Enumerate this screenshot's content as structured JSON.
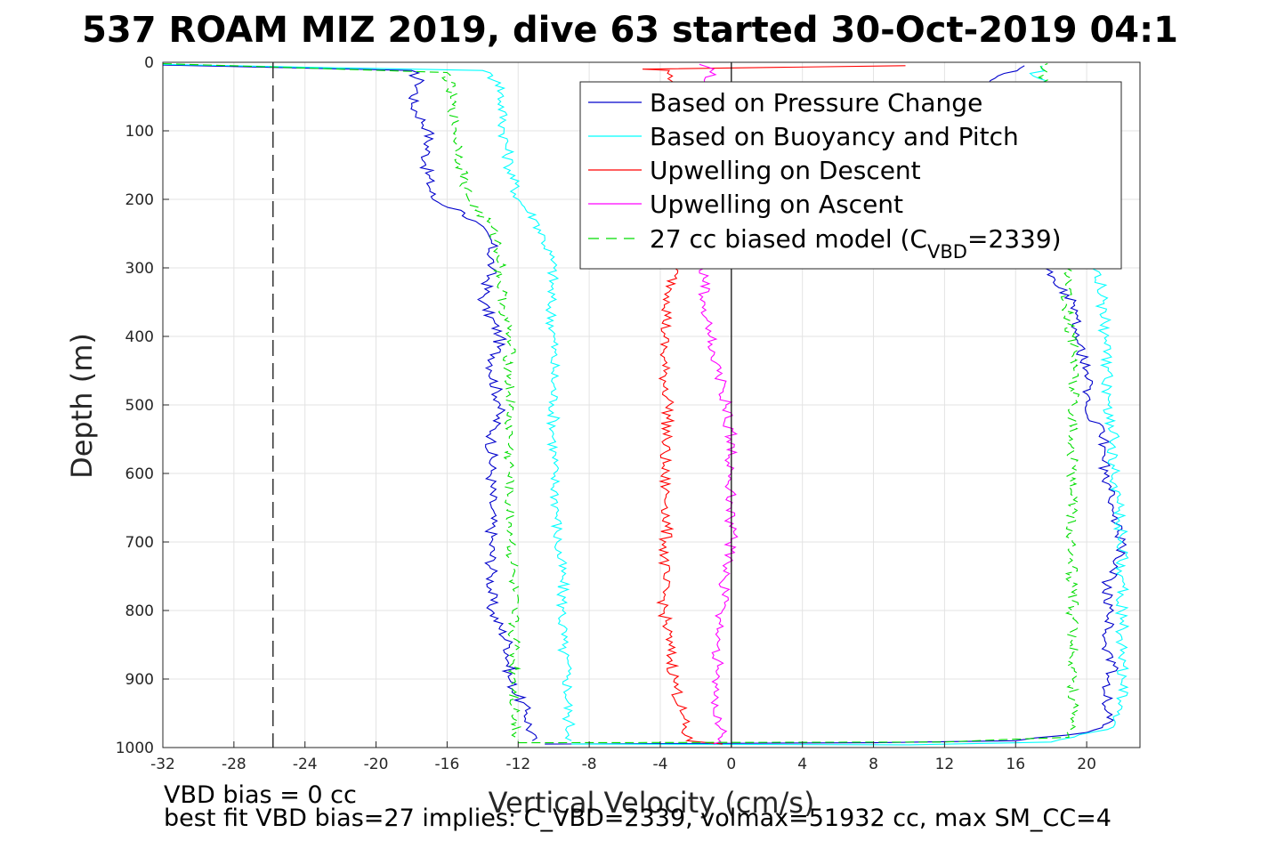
{
  "chart_data": {
    "type": "line",
    "title": "537 ROAM MIZ 2019, dive 63 started 30-Oct-2019 04:1",
    "xlabel": "Vertical Velocity (cm/s)",
    "ylabel": "Depth (m)",
    "xlim": [
      -32,
      23
    ],
    "ylim": [
      0,
      1000
    ],
    "y_reversed": true,
    "grid": true,
    "legend_position": "top-right",
    "x_ticks": [
      "-32",
      "-28",
      "-24",
      "-20",
      "-16",
      "-12",
      "-8",
      "-4",
      "0",
      "4",
      "8",
      "12",
      "16",
      "20"
    ],
    "x_tick_values": [
      -32,
      -28,
      -24,
      -20,
      -16,
      -12,
      -8,
      -4,
      0,
      4,
      8,
      12,
      16,
      20
    ],
    "y_ticks": [
      "0",
      "100",
      "200",
      "300",
      "400",
      "500",
      "600",
      "700",
      "800",
      "900",
      "1000"
    ],
    "y_tick_values": [
      0,
      100,
      200,
      300,
      400,
      500,
      600,
      700,
      800,
      900,
      1000
    ],
    "vbd_bias_line_x": -25.8,
    "series": [
      {
        "name": "Based on Pressure Change",
        "color": "#0000cc",
        "style": "solid",
        "descent": [
          [
            -32,
            4
          ],
          [
            -18,
            12
          ],
          [
            -17.5,
            30
          ],
          [
            -18,
            60
          ],
          [
            -17,
            100
          ],
          [
            -17.2,
            150
          ],
          [
            -16.8,
            200
          ],
          [
            -15,
            220
          ],
          [
            -13.5,
            260
          ],
          [
            -13.5,
            300
          ],
          [
            -14,
            350
          ],
          [
            -13,
            400
          ],
          [
            -13.5,
            450
          ],
          [
            -13,
            500
          ],
          [
            -13.5,
            550
          ],
          [
            -13.5,
            600
          ],
          [
            -13.5,
            650
          ],
          [
            -13.5,
            700
          ],
          [
            -13.5,
            750
          ],
          [
            -13.5,
            800
          ],
          [
            -12.5,
            850
          ],
          [
            -12.5,
            900
          ],
          [
            -11.5,
            950
          ],
          [
            -11.2,
            990
          ]
        ],
        "ascent": [
          [
            -10.5,
            995
          ],
          [
            8,
            993
          ],
          [
            16,
            990
          ],
          [
            20,
            978
          ],
          [
            21.5,
            960
          ],
          [
            21,
            920
          ],
          [
            21.5,
            880
          ],
          [
            21,
            840
          ],
          [
            21.5,
            800
          ],
          [
            21,
            770
          ],
          [
            21.5,
            740
          ],
          [
            22,
            700
          ],
          [
            21.5,
            650
          ],
          [
            21,
            600
          ],
          [
            21,
            550
          ],
          [
            20,
            500
          ],
          [
            20,
            450
          ],
          [
            19.5,
            410
          ],
          [
            19.5,
            370
          ],
          [
            19,
            340
          ],
          [
            17.8,
            310
          ],
          [
            14.5,
            30
          ],
          [
            15,
            20
          ],
          [
            16.5,
            5
          ]
        ]
      },
      {
        "name": "Based on Buoyancy and Pitch",
        "color": "#00ffff",
        "style": "solid",
        "descent": [
          [
            -32,
            3
          ],
          [
            -14,
            12
          ],
          [
            -13,
            30
          ],
          [
            -12.8,
            100
          ],
          [
            -12.5,
            150
          ],
          [
            -12,
            200
          ],
          [
            -11,
            230
          ],
          [
            -10.5,
            260
          ],
          [
            -10,
            300
          ],
          [
            -10.2,
            350
          ],
          [
            -10,
            400
          ],
          [
            -10,
            450
          ],
          [
            -10,
            500
          ],
          [
            -10,
            550
          ],
          [
            -10,
            600
          ],
          [
            -9.8,
            650
          ],
          [
            -9.8,
            700
          ],
          [
            -9.5,
            750
          ],
          [
            -9.5,
            800
          ],
          [
            -9.5,
            850
          ],
          [
            -9.2,
            900
          ],
          [
            -9.2,
            950
          ],
          [
            -9,
            990
          ]
        ],
        "ascent": [
          [
            -9,
            995
          ],
          [
            10,
            996
          ],
          [
            18,
            992
          ],
          [
            21.5,
            970
          ],
          [
            22,
            940
          ],
          [
            22,
            900
          ],
          [
            22,
            850
          ],
          [
            22,
            800
          ],
          [
            22,
            750
          ],
          [
            22,
            700
          ],
          [
            21.8,
            650
          ],
          [
            21.5,
            600
          ],
          [
            21.5,
            550
          ],
          [
            21.2,
            500
          ],
          [
            21.2,
            450
          ],
          [
            21,
            410
          ],
          [
            21,
            380
          ],
          [
            20.8,
            340
          ],
          [
            20.8,
            310
          ],
          [
            17.5,
            30
          ],
          [
            17,
            20
          ],
          [
            17.5,
            5
          ]
        ]
      },
      {
        "name": "Upwelling on Descent",
        "color": "#ff0000",
        "style": "solid",
        "descent": [
          [
            9.8,
            5
          ],
          [
            -5,
            10
          ],
          [
            -3.5,
            12
          ],
          [
            -3.2,
            300
          ],
          [
            -3.5,
            350
          ],
          [
            -3.8,
            400
          ],
          [
            -3.8,
            450
          ],
          [
            -3.5,
            500
          ],
          [
            -3.7,
            550
          ],
          [
            -3.8,
            600
          ],
          [
            -3.6,
            650
          ],
          [
            -3.7,
            700
          ],
          [
            -3.8,
            750
          ],
          [
            -3.8,
            800
          ],
          [
            -3.5,
            850
          ],
          [
            -3.2,
            900
          ],
          [
            -2.8,
            950
          ],
          [
            -2.5,
            990
          ],
          [
            -0.5,
            995
          ]
        ]
      },
      {
        "name": "Upwelling on Ascent",
        "color": "#ff00ff",
        "style": "solid",
        "ascent": [
          [
            -1,
            995
          ],
          [
            -0.5,
            980
          ],
          [
            -1,
            950
          ],
          [
            -0.8,
            900
          ],
          [
            -0.8,
            850
          ],
          [
            -0.5,
            800
          ],
          [
            -0.3,
            750
          ],
          [
            0,
            700
          ],
          [
            0,
            650
          ],
          [
            0,
            600
          ],
          [
            0,
            550
          ],
          [
            -0.3,
            500
          ],
          [
            -0.8,
            450
          ],
          [
            -1.2,
            400
          ],
          [
            -1.5,
            350
          ],
          [
            -1.5,
            300
          ],
          [
            -1.5,
            30
          ],
          [
            -1,
            10
          ],
          [
            -1.8,
            3
          ]
        ]
      },
      {
        "name": "27 cc biased model (C_VBD=2339)",
        "legend_main": "27 cc biased model (C",
        "legend_sub": "VBD",
        "legend_end": "=2339)",
        "color": "#00dd00",
        "style": "dashed",
        "descent": [
          [
            -32,
            2
          ],
          [
            -16,
            15
          ],
          [
            -15.8,
            50
          ],
          [
            -15.5,
            100
          ],
          [
            -15.2,
            150
          ],
          [
            -14.8,
            200
          ],
          [
            -13.5,
            240
          ],
          [
            -13,
            280
          ],
          [
            -13,
            320
          ],
          [
            -12.8,
            360
          ],
          [
            -12.5,
            400
          ],
          [
            -12.5,
            450
          ],
          [
            -12.5,
            500
          ],
          [
            -12.5,
            550
          ],
          [
            -12.5,
            600
          ],
          [
            -12.5,
            650
          ],
          [
            -12.4,
            700
          ],
          [
            -12.3,
            750
          ],
          [
            -12.3,
            800
          ],
          [
            -12.2,
            850
          ],
          [
            -12.2,
            900
          ],
          [
            -12.2,
            950
          ],
          [
            -12,
            990
          ]
        ],
        "ascent": [
          [
            -12,
            993
          ],
          [
            12,
            992
          ],
          [
            19,
            985
          ],
          [
            19.2,
            950
          ],
          [
            19.2,
            900
          ],
          [
            19.2,
            850
          ],
          [
            19.2,
            800
          ],
          [
            19.2,
            750
          ],
          [
            19.2,
            700
          ],
          [
            19.2,
            650
          ],
          [
            19.2,
            600
          ],
          [
            19.2,
            550
          ],
          [
            19.2,
            500
          ],
          [
            19.3,
            450
          ],
          [
            19.2,
            400
          ],
          [
            18.8,
            350
          ],
          [
            19,
            320
          ],
          [
            19.2,
            200
          ],
          [
            17.5,
            30
          ],
          [
            17.8,
            2
          ]
        ]
      }
    ]
  },
  "annotations": {
    "line1": "VBD bias = 0 cc",
    "line2": "best fit VBD bias=27 implies: C_VBD=2339, volmax=51932 cc, max SM_CC=4"
  }
}
